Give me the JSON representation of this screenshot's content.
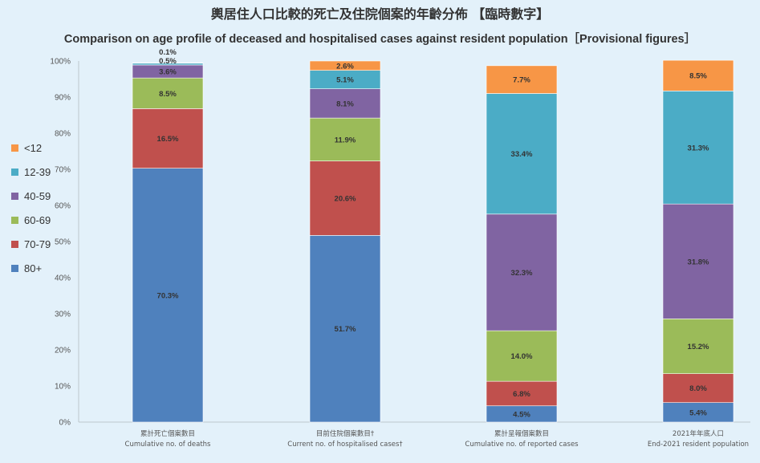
{
  "chart_data": {
    "type": "bar",
    "stacked": true,
    "title": "輿居住人口比較的死亡及住院個案的年齡分佈 【臨時數字】",
    "subtitle": "Comparison on age profile of deceased and hospitalised cases against resident population［Provisional figures］",
    "categories": [
      [
        "累計死亡個案數目",
        "Cumulative no. of deaths"
      ],
      [
        "目前住院個案數目†",
        "Current no. of hospitalised cases†"
      ],
      [
        "累計呈報個案數目",
        "Cumulative no. of reported cases"
      ],
      [
        "2021年年底人口",
        "End-2021 resident population"
      ]
    ],
    "series": [
      {
        "name": "80+",
        "color": "#4f81bd",
        "values": [
          70.3,
          51.7,
          4.5,
          5.4
        ],
        "labels": [
          "70.3%",
          "51.7%",
          "4.5%",
          "5.4%"
        ]
      },
      {
        "name": "70-79",
        "color": "#c0504d",
        "values": [
          16.5,
          20.6,
          6.8,
          8.0
        ],
        "labels": [
          "16.5%",
          "20.6%",
          "6.8%",
          "8.0%"
        ]
      },
      {
        "name": "60-69",
        "color": "#9bbb59",
        "values": [
          8.5,
          11.9,
          14.0,
          15.2
        ],
        "labels": [
          "8.5%",
          "11.9%",
          "14.0%",
          "15.2%"
        ]
      },
      {
        "name": "40-59",
        "color": "#8064a2",
        "values": [
          3.6,
          8.1,
          32.3,
          31.8
        ],
        "labels": [
          "3.6%",
          "8.1%",
          "32.3%",
          "31.8%"
        ]
      },
      {
        "name": "12-39",
        "color": "#4bacc6",
        "values": [
          0.5,
          5.1,
          33.4,
          31.3
        ],
        "labels": [
          "0.5%",
          "5.1%",
          "33.4%",
          "31.3%"
        ]
      },
      {
        "name": "<12",
        "color": "#f79646",
        "values": [
          0.1,
          2.6,
          7.7,
          8.5
        ],
        "labels": [
          "0.1%",
          "2.6%",
          "7.7%",
          "8.5%"
        ]
      }
    ],
    "yticks": [
      "0%",
      "10%",
      "20%",
      "30%",
      "40%",
      "50%",
      "60%",
      "70%",
      "80%",
      "90%",
      "100%"
    ],
    "ylim": [
      0,
      100
    ],
    "legend_position": "left",
    "grid": false
  }
}
